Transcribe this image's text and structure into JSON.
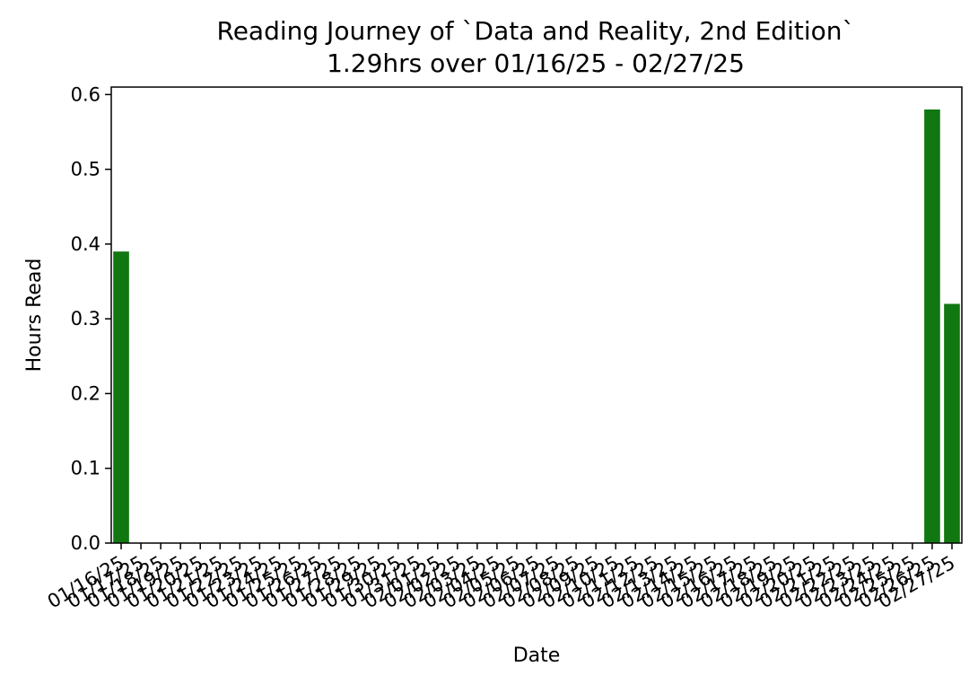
{
  "chart_data": {
    "type": "bar",
    "title": "Reading Journey of `Data and Reality, 2nd Edition`",
    "subtitle": "1.29hrs over 01/16/25 - 02/27/25",
    "xlabel": "Date",
    "ylabel": "Hours Read",
    "ylim": [
      0,
      0.61
    ],
    "yticks": [
      0.0,
      0.1,
      0.2,
      0.3,
      0.4,
      0.5,
      0.6
    ],
    "ytick_labels": [
      "0.0",
      "0.1",
      "0.2",
      "0.3",
      "0.4",
      "0.5",
      "0.6"
    ],
    "bar_color": "#117711",
    "grid": false,
    "categories": [
      "01/16/25",
      "01/17/25",
      "01/18/25",
      "01/19/25",
      "01/20/25",
      "01/21/25",
      "01/22/25",
      "01/23/25",
      "01/24/25",
      "01/25/25",
      "01/26/25",
      "01/27/25",
      "01/28/25",
      "01/29/25",
      "01/30/25",
      "01/31/25",
      "02/01/25",
      "02/02/25",
      "02/03/25",
      "02/04/25",
      "02/05/25",
      "02/06/25",
      "02/07/25",
      "02/08/25",
      "02/09/25",
      "02/10/25",
      "02/11/25",
      "02/12/25",
      "02/13/25",
      "02/14/25",
      "02/15/25",
      "02/16/25",
      "02/17/25",
      "02/18/25",
      "02/19/25",
      "02/20/25",
      "02/21/25",
      "02/22/25",
      "02/23/25",
      "02/24/25",
      "02/25/25",
      "02/26/25",
      "02/27/25"
    ],
    "values": [
      0.39,
      0,
      0,
      0,
      0,
      0,
      0,
      0,
      0,
      0,
      0,
      0,
      0,
      0,
      0,
      0,
      0,
      0,
      0,
      0,
      0,
      0,
      0,
      0,
      0,
      0,
      0,
      0,
      0,
      0,
      0,
      0,
      0,
      0,
      0,
      0,
      0,
      0,
      0,
      0,
      0,
      0.58,
      0.32
    ]
  }
}
